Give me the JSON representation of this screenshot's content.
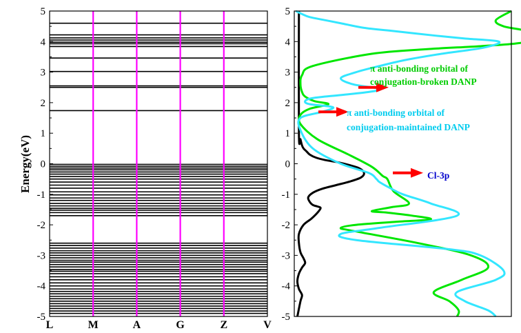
{
  "chart_data": [
    {
      "type": "line",
      "subtype": "band-structure",
      "ylabel": "Energy(eV)",
      "ylim": [
        -5,
        5
      ],
      "yticks": [
        "-5",
        "-4",
        "-3",
        "-2",
        "-1",
        "0",
        "1",
        "2",
        "3",
        "4",
        "5"
      ],
      "kpoints": [
        "L",
        "M",
        "A",
        "G",
        "Z",
        "V"
      ],
      "kpoint_line_color": "#ff00ff",
      "band_color": "#000000",
      "band_energies_ev": [
        4.6,
        4.22,
        4.12,
        4.05,
        3.98,
        3.93,
        3.84,
        3.46,
        3.02,
        2.55,
        2.5,
        1.74,
        -0.02,
        -0.08,
        -0.14,
        -0.2,
        -0.27,
        -0.34,
        -0.42,
        -0.5,
        -0.6,
        -0.7,
        -0.8,
        -0.92,
        -1.02,
        -1.12,
        -1.2,
        -1.3,
        -1.38,
        -1.46,
        -1.52,
        -1.6,
        -1.7,
        -2.6,
        -2.68,
        -2.76,
        -2.85,
        -2.92,
        -3.0,
        -3.08,
        -3.16,
        -3.22,
        -3.3,
        -3.38,
        -3.46,
        -3.52,
        -3.6,
        -3.7,
        -3.8,
        -3.9,
        -4.0,
        -4.1,
        -4.18,
        -4.26,
        -4.34,
        -4.42,
        -4.5,
        -4.58,
        -4.66,
        -4.74,
        -4.82,
        -4.9
      ]
    },
    {
      "type": "line",
      "subtype": "density-of-states",
      "ylim": [
        -5,
        5
      ],
      "yticks": [
        "-5",
        "-4",
        "-3",
        "-2",
        "-1",
        "0",
        "1",
        "2",
        "3",
        "4",
        "5"
      ],
      "series": [
        {
          "color": "#000000",
          "x": [
            0.03,
            0.03,
            0.04,
            0.05,
            0.06,
            0.08,
            0.1,
            0.14,
            0.2,
            0.28,
            0.36,
            0.42,
            0.45,
            0.43,
            0.36,
            0.27,
            0.18,
            0.12,
            0.09,
            0.1,
            0.12,
            0.15,
            0.17,
            0.15,
            0.11,
            0.06,
            0.03,
            0.03,
            0.04,
            0.06,
            0.07,
            0.05,
            0.03,
            0.02,
            0.03,
            0.05,
            0.04,
            0.02
          ],
          "y": [
            5,
            1.0,
            0.8,
            0.6,
            0.5,
            0.4,
            0.3,
            0.2,
            0.12,
            0.05,
            -0.05,
            -0.15,
            -0.3,
            -0.45,
            -0.58,
            -0.7,
            -0.82,
            -0.95,
            -1.1,
            -1.25,
            -1.35,
            -1.4,
            -1.45,
            -1.6,
            -1.8,
            -2.0,
            -2.3,
            -2.6,
            -2.9,
            -3.1,
            -3.25,
            -3.4,
            -3.6,
            -3.85,
            -4.1,
            -4.3,
            -4.5,
            -5
          ]
        },
        {
          "color": "#00e600",
          "x": [
            1.4,
            1.3,
            1.35,
            1.5,
            1.6,
            1.45,
            1.2,
            0.85,
            0.5,
            0.12,
            0.05,
            0.04,
            0.05,
            0.07,
            0.13,
            0.22,
            0.1,
            0.04,
            0.04,
            0.15,
            0.35,
            0.5,
            0.57,
            0.6,
            0.64,
            0.74,
            0.63,
            0.5,
            0.6,
            0.76,
            0.88,
            0.66,
            0.4,
            0.3,
            0.38,
            0.8,
            1.14,
            1.25,
            1.08,
            0.9,
            1.0,
            1.06,
            1.05
          ],
          "y": [
            5,
            4.7,
            4.5,
            4.35,
            4.15,
            3.95,
            3.85,
            3.75,
            3.6,
            3.2,
            2.9,
            2.6,
            2.35,
            2.2,
            2.05,
            1.95,
            1.8,
            1.6,
            1.3,
            0.8,
            0.3,
            -0.1,
            -0.4,
            -0.5,
            -0.9,
            -1.3,
            -1.42,
            -1.55,
            -1.6,
            -1.7,
            -1.82,
            -1.9,
            -2.0,
            -2.1,
            -2.2,
            -2.6,
            -3.0,
            -3.4,
            -3.8,
            -4.2,
            -4.5,
            -4.8,
            -5
          ]
        },
        {
          "color": "#33e6ff",
          "x": [
            0.01,
            0.05,
            0.1,
            0.2,
            0.3,
            0.45,
            0.63,
            0.9,
            1.1,
            1.32,
            1.22,
            0.95,
            0.72,
            0.55,
            0.4,
            0.3,
            0.38,
            0.55,
            0.48,
            0.3,
            0.12,
            0.07,
            0.1,
            0.25,
            0.18,
            0.04,
            0.04,
            0.12,
            0.3,
            0.48,
            0.53,
            0.55,
            0.62,
            0.7,
            0.88,
            1.05,
            0.55,
            0.3,
            0.4,
            1.0,
            1.2,
            1.35,
            1.3,
            1.05,
            1.1,
            1.25,
            1.3
          ],
          "y": [
            5,
            4.9,
            4.8,
            4.7,
            4.6,
            4.45,
            4.35,
            4.2,
            4.1,
            4.0,
            3.8,
            3.6,
            3.4,
            3.2,
            3.0,
            2.8,
            2.6,
            2.45,
            2.35,
            2.25,
            2.15,
            2.05,
            1.95,
            1.85,
            1.7,
            1.5,
            1.1,
            0.5,
            0.0,
            -0.3,
            -0.5,
            -0.6,
            -0.8,
            -1.0,
            -1.3,
            -1.7,
            -2.1,
            -2.3,
            -2.5,
            -2.8,
            -3.0,
            -3.5,
            -3.8,
            -4.2,
            -4.5,
            -4.8,
            -5
          ]
        }
      ],
      "annotations": [
        {
          "lines": [
            "π  anti-bonding orbital of",
            "conjugation-broken DANP"
          ],
          "color": "#00cc00",
          "at_energy": 2.5
        },
        {
          "lines": [
            "π anti-bonding orbital of",
            "conjugation-maintained DANP"
          ],
          "color": "#00ccee",
          "at_energy": 1.7
        },
        {
          "lines": [
            "Cl-3p"
          ],
          "color": "#0000cc",
          "at_energy": -0.3
        }
      ],
      "arrow_color": "#ff0000"
    }
  ]
}
